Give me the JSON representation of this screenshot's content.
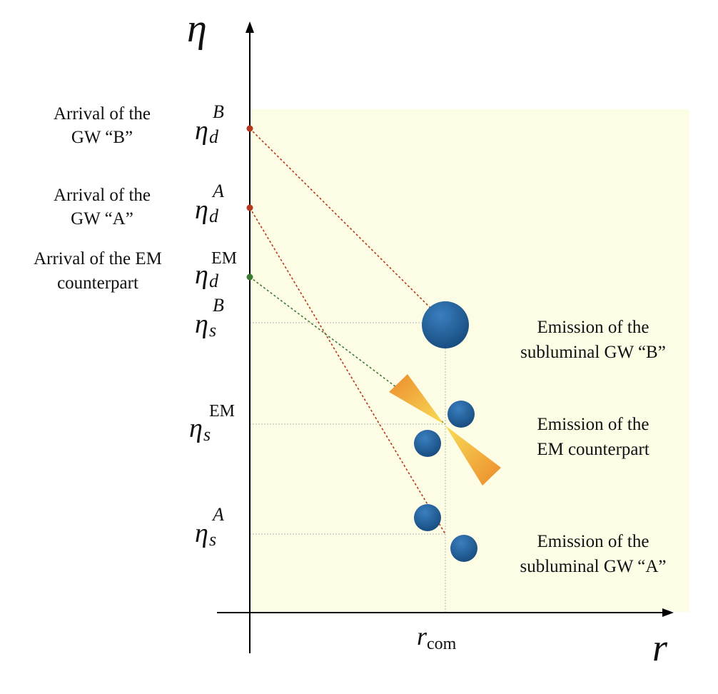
{
  "axes": {
    "vertical_label": "η",
    "horizontal_label": "r",
    "r_com_label": "r",
    "r_com_subscript": "com"
  },
  "eta_ticks": {
    "d_B": {
      "base": "η",
      "sub": "d",
      "sup": "B"
    },
    "d_A": {
      "base": "η",
      "sub": "d",
      "sup": "A"
    },
    "d_EM": {
      "base": "η",
      "sub": "d",
      "sup": "EM"
    },
    "s_B": {
      "base": "η",
      "sub": "s",
      "sup": "B"
    },
    "s_EM": {
      "base": "η",
      "sub": "s",
      "sup": "EM"
    },
    "s_A": {
      "base": "η",
      "sub": "s",
      "sup": "A"
    }
  },
  "left_notes": {
    "arrival_B": [
      "Arrival of the",
      "GW “B”"
    ],
    "arrival_A": [
      "Arrival of the",
      "GW “A”"
    ],
    "arrival_EM": [
      "Arrival of the EM",
      "counterpart"
    ]
  },
  "right_notes": {
    "emission_B": [
      "Emission of the",
      "subluminal GW “B”"
    ],
    "emission_EM": [
      "Emission of the",
      "EM counterpart"
    ],
    "emission_A": [
      "Emission of the",
      "subluminal GW “A”"
    ]
  },
  "colors": {
    "background_region": "#fdfde6",
    "gw_path": "#b3381c",
    "em_path": "#3c7a32",
    "blob": "#1f5f98",
    "cone_light": "#f7d14a",
    "cone_dark": "#ee8a2a"
  }
}
